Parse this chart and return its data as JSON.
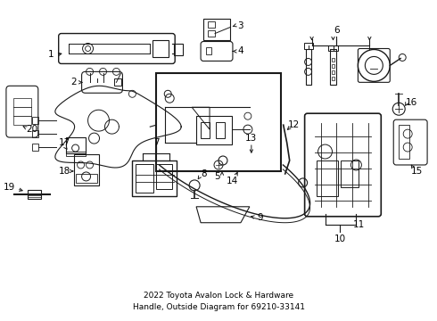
{
  "title_line1": "2022 Toyota Avalon Lock & Hardware",
  "title_line2": "Handle, Outside Diagram for 69210-33141",
  "bg_color": "#ffffff",
  "line_color": "#1a1a1a",
  "text_color": "#000000",
  "fig_width": 4.9,
  "fig_height": 3.6,
  "dpi": 100
}
